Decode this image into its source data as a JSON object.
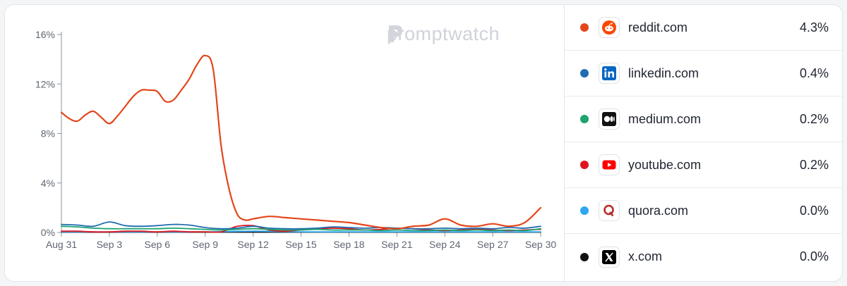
{
  "watermark": {
    "text": "promptwatch"
  },
  "chart_data": {
    "type": "line",
    "ylim": [
      0,
      16
    ],
    "y_ticks": [
      "0%",
      "4%",
      "8%",
      "12%",
      "16%"
    ],
    "y_tick_values": [
      0,
      4,
      8,
      12,
      16
    ],
    "x_ticks": [
      "Aug 31",
      "Sep 3",
      "Sep 6",
      "Sep 9",
      "Sep 12",
      "Sep 15",
      "Sep 18",
      "Sep 21",
      "Sep 24",
      "Sep 27",
      "Sep 30"
    ],
    "x_tick_days": [
      0,
      3,
      6,
      9,
      12,
      15,
      18,
      21,
      24,
      27,
      30
    ],
    "grid": false,
    "series": [
      {
        "name": "reddit.com",
        "color": "#e4461a",
        "x": [
          0,
          0.5,
          1,
          1.5,
          2,
          2.5,
          3,
          3.5,
          4,
          4.5,
          5,
          5.5,
          6,
          6.5,
          7,
          7.5,
          8,
          8.5,
          9,
          9.5,
          10,
          10.5,
          11,
          11.5,
          12,
          13,
          14,
          15,
          16,
          17,
          18,
          19,
          20,
          21,
          22,
          23,
          24,
          25,
          26,
          27,
          28,
          29,
          30
        ],
        "values": [
          9.7,
          9.2,
          9.0,
          9.5,
          9.8,
          9.3,
          8.8,
          9.4,
          10.2,
          11.0,
          11.5,
          11.5,
          11.4,
          10.6,
          10.7,
          11.5,
          12.4,
          13.6,
          14.3,
          13.2,
          7.0,
          3.5,
          1.5,
          1.0,
          1.1,
          1.3,
          1.2,
          1.1,
          1.0,
          0.9,
          0.8,
          0.6,
          0.4,
          0.3,
          0.5,
          0.6,
          1.1,
          0.6,
          0.5,
          0.7,
          0.5,
          0.8,
          2.0
        ]
      },
      {
        "name": "linkedin.com",
        "color": "#1f6db0",
        "x": [
          0,
          1,
          2,
          3,
          4,
          5,
          6,
          7,
          8,
          9,
          10,
          11,
          12,
          13,
          14,
          15,
          16,
          17,
          18,
          19,
          20,
          21,
          22,
          23,
          24,
          25,
          26,
          27,
          28,
          29,
          30
        ],
        "values": [
          0.65,
          0.6,
          0.5,
          0.85,
          0.55,
          0.5,
          0.55,
          0.65,
          0.6,
          0.4,
          0.3,
          0.35,
          0.5,
          0.35,
          0.3,
          0.3,
          0.35,
          0.45,
          0.4,
          0.35,
          0.4,
          0.35,
          0.3,
          0.3,
          0.35,
          0.3,
          0.35,
          0.3,
          0.4,
          0.35,
          0.5
        ]
      },
      {
        "name": "medium.com",
        "color": "#1fa36f",
        "x": [
          0,
          1,
          2,
          3,
          4,
          5,
          6,
          7,
          8,
          9,
          10,
          11,
          12,
          13,
          14,
          15,
          16,
          17,
          18,
          19,
          20,
          21,
          22,
          23,
          24,
          25,
          26,
          27,
          28,
          29,
          30
        ],
        "values": [
          0.5,
          0.45,
          0.35,
          0.3,
          0.3,
          0.3,
          0.3,
          0.35,
          0.3,
          0.25,
          0.2,
          0.25,
          0.3,
          0.25,
          0.2,
          0.2,
          0.25,
          0.2,
          0.2,
          0.2,
          0.15,
          0.2,
          0.15,
          0.15,
          0.2,
          0.15,
          0.2,
          0.15,
          0.2,
          0.15,
          0.3
        ]
      },
      {
        "name": "youtube.com",
        "color": "#e0141e",
        "x": [
          0,
          1,
          2,
          3,
          4,
          5,
          6,
          7,
          8,
          9,
          10,
          11,
          12,
          13,
          14,
          15,
          16,
          17,
          18,
          19,
          20,
          21,
          22,
          23,
          24,
          25,
          26,
          27,
          28,
          29,
          30
        ],
        "values": [
          0.1,
          0.1,
          0.05,
          0.05,
          0.1,
          0.1,
          0.05,
          0.1,
          0.05,
          0.05,
          0.05,
          0.5,
          0.55,
          0.2,
          0.1,
          0.2,
          0.3,
          0.35,
          0.3,
          0.2,
          0.25,
          0.35,
          0.3,
          0.2,
          0.15,
          0.2,
          0.25,
          0.2,
          0.15,
          0.2,
          0.25
        ]
      },
      {
        "name": "quora.com",
        "color": "#2ea7f0",
        "x": [
          0,
          3,
          6,
          9,
          12,
          15,
          18,
          21,
          24,
          27,
          30
        ],
        "values": [
          0.05,
          0.05,
          0.05,
          0.05,
          0.1,
          0.05,
          0.05,
          0.05,
          0.05,
          0.05,
          0.05
        ]
      },
      {
        "name": "x.com",
        "color": "#111111",
        "x": [
          0,
          3,
          6,
          9,
          12,
          15,
          18,
          21,
          24,
          27,
          30
        ],
        "values": [
          0.02,
          0.02,
          0.02,
          0.02,
          0.02,
          0.02,
          0.02,
          0.02,
          0.02,
          0.02,
          0.02
        ]
      }
    ]
  },
  "legend": [
    {
      "name": "reddit.com",
      "value": "4.3%",
      "color": "#e4461a",
      "icon": "reddit-icon"
    },
    {
      "name": "linkedin.com",
      "value": "0.4%",
      "color": "#1f6db0",
      "icon": "linkedin-icon"
    },
    {
      "name": "medium.com",
      "value": "0.2%",
      "color": "#1fa36f",
      "icon": "medium-icon"
    },
    {
      "name": "youtube.com",
      "value": "0.2%",
      "color": "#e0141e",
      "icon": "youtube-icon"
    },
    {
      "name": "quora.com",
      "value": "0.0%",
      "color": "#2ea7f0",
      "icon": "quora-icon"
    },
    {
      "name": "x.com",
      "value": "0.0%",
      "color": "#111111",
      "icon": "x-icon"
    }
  ]
}
